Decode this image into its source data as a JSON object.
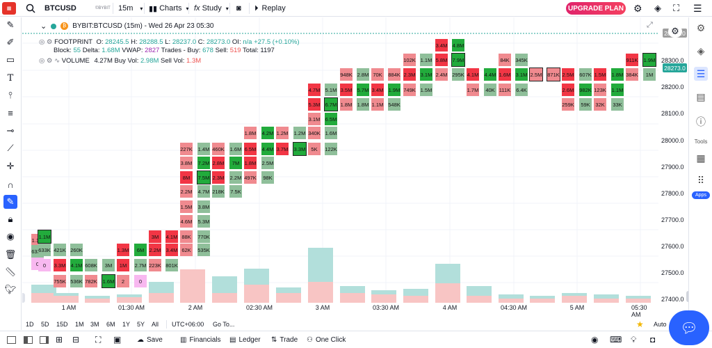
{
  "topbar": {
    "symbol": "BTCUSD",
    "exchange": "©BYBIT",
    "interval": "15m",
    "charts": "Charts",
    "study": "Study",
    "replay": "Replay",
    "upgrade": "UPGRADE PLAN"
  },
  "legend": {
    "title": "BYBIT:BTCUSD (15m) - Wed 26 Apr 23 05:30",
    "fp_name": "FOOTPRINT",
    "o_label": "O:",
    "o": "28245.5",
    "h_label": "H:",
    "h": "28288.5",
    "l_label": "L:",
    "l": "28237.0",
    "c_label": "C:",
    "c": "28273.0",
    "oi_label": "OI:",
    "oi": "n/a",
    "chg": "+27.5",
    "chgp": "(+0.10%)",
    "block_label": "Block:",
    "block": "55",
    "delta_label": "Delta:",
    "delta": "1.68M",
    "vwap_label": "VWAP:",
    "vwap": "2827",
    "trades_label": "Trades - Buy:",
    "buy": "678",
    "sell_label": "Sell:",
    "sell": "519",
    "total_label": "Total:",
    "total": "1197",
    "vol_name": "VOLUME",
    "vol": "4.27M",
    "buyvol_label": "Buy Vol:",
    "buyvol": "2.98M",
    "sellvol_label": "Sell Vol:",
    "sellvol": "1.3M"
  },
  "price_axis": {
    "ticks": [
      "28300.0",
      "28200.0",
      "28100.0",
      "28000.0",
      "27900.0",
      "27800.0",
      "27700.0",
      "27600.0",
      "27500.0",
      "27400.0"
    ],
    "last": "28273.0",
    "top": "28280.0"
  },
  "time_axis": {
    "ticks": [
      "1 AM",
      "01:30 AM",
      "2 AM",
      "02:30 AM",
      "3 AM",
      "03:30 AM",
      "4 AM",
      "04:30 AM",
      "5 AM",
      "05:30 AM"
    ]
  },
  "bottom": {
    "ranges": [
      "1D",
      "5D",
      "15D",
      "1M",
      "3M",
      "6M",
      "1Y",
      "5Y",
      "All"
    ],
    "tz": "UTC+06:00",
    "goto": "Go To...",
    "auto": "Auto",
    "log": "Lo"
  },
  "footer": {
    "save": "Save",
    "financials": "Financials",
    "ledger": "Ledger",
    "trade": "Trade",
    "oneclick": "One Click"
  },
  "side": {
    "tools": "Tools",
    "apps": "Apps"
  },
  "colors": {
    "up": "#26a69a",
    "down": "#ef5350",
    "upcell": "#22ab3c",
    "downcell": "#f23645",
    "accent": "#2962ff"
  },
  "footprint": [
    {
      "x": 45,
      "cells": [
        {
          "y": 336,
          "t": "1.1M",
          "c": "r"
        },
        {
          "y": 352,
          "t": "633K",
          "c": "g"
        },
        {
          "y": 370,
          "t": "0",
          "c": "p"
        }
      ]
    },
    {
      "x": 55,
      "cells": [
        {
          "y": 331,
          "t": "1.1M",
          "c": "G",
          "b": 1
        },
        {
          "y": 350,
          "t": "633K",
          "c": "g"
        },
        {
          "y": 372,
          "t": "0",
          "c": "p"
        }
      ]
    },
    {
      "x": 77,
      "cells": [
        {
          "y": 350,
          "t": "421K",
          "c": "g"
        },
        {
          "y": 372,
          "t": "3.3M",
          "c": "R"
        },
        {
          "y": 395,
          "t": "755K",
          "c": "r"
        }
      ]
    },
    {
      "x": 101,
      "cells": [
        {
          "y": 350,
          "t": "260K",
          "c": "g"
        },
        {
          "y": 372,
          "t": "4.1M",
          "c": "G"
        },
        {
          "y": 395,
          "t": "536K",
          "c": "g"
        }
      ]
    },
    {
      "x": 122,
      "cells": [
        {
          "y": 372,
          "t": "608K",
          "c": "g"
        },
        {
          "y": 395,
          "t": "782K",
          "c": "r"
        }
      ]
    },
    {
      "x": 147,
      "cells": [
        {
          "y": 372,
          "t": "3M",
          "c": "g"
        },
        {
          "y": 395,
          "t": "1.6M",
          "c": "G",
          "b": 1
        }
      ]
    },
    {
      "x": 168,
      "cells": [
        {
          "y": 350,
          "t": "1.3M",
          "c": "R"
        },
        {
          "y": 372,
          "t": "1M",
          "c": "R"
        },
        {
          "y": 395,
          "t": "2",
          "c": "r"
        }
      ]
    },
    {
      "x": 193,
      "cells": [
        {
          "y": 350,
          "t": "6M",
          "c": "G"
        },
        {
          "y": 372,
          "t": "2.7M",
          "c": "g"
        },
        {
          "y": 395,
          "t": "0",
          "c": "p"
        }
      ]
    },
    {
      "x": 214,
      "cells": [
        {
          "y": 331,
          "t": "3M",
          "c": "R"
        },
        {
          "y": 350,
          "t": "2.2M",
          "c": "R"
        },
        {
          "y": 372,
          "t": "223K",
          "c": "r"
        }
      ]
    },
    {
      "x": 238,
      "cells": [
        {
          "y": 331,
          "t": "4.1M",
          "c": "R"
        },
        {
          "y": 350,
          "t": "3.4M",
          "c": "R"
        },
        {
          "y": 372,
          "t": "801K",
          "c": "g"
        }
      ]
    },
    {
      "x": 259,
      "cells": [
        {
          "y": 205,
          "t": "227K",
          "c": "r"
        },
        {
          "y": 225,
          "t": "3.8M",
          "c": "r"
        },
        {
          "y": 246,
          "t": "8M",
          "c": "R"
        },
        {
          "y": 266,
          "t": "2.2M",
          "c": "r"
        },
        {
          "y": 288,
          "t": "1.5M",
          "c": "r"
        },
        {
          "y": 309,
          "t": "4.6M",
          "c": "r"
        },
        {
          "y": 331,
          "t": "88K",
          "c": "r"
        },
        {
          "y": 350,
          "t": "62K",
          "c": "r"
        }
      ]
    },
    {
      "x": 284,
      "cells": [
        {
          "y": 205,
          "t": "1.4M",
          "c": "g"
        },
        {
          "y": 225,
          "t": "7.2M",
          "c": "G"
        },
        {
          "y": 246,
          "t": "7.5M",
          "c": "G",
          "b": 1
        },
        {
          "y": 266,
          "t": "4.7M",
          "c": "g"
        },
        {
          "y": 288,
          "t": "3.8M",
          "c": "g"
        },
        {
          "y": 309,
          "t": "5.3M",
          "c": "g"
        },
        {
          "y": 331,
          "t": "770K",
          "c": "g"
        },
        {
          "y": 350,
          "t": "535K",
          "c": "g"
        }
      ]
    },
    {
      "x": 305,
      "cells": [
        {
          "y": 205,
          "t": "460K",
          "c": "r"
        },
        {
          "y": 225,
          "t": "2.8M",
          "c": "R"
        },
        {
          "y": 246,
          "t": "2.3M",
          "c": "R"
        },
        {
          "y": 266,
          "t": "218K",
          "c": "g"
        }
      ]
    },
    {
      "x": 330,
      "cells": [
        {
          "y": 205,
          "t": "1.6M",
          "c": "g"
        },
        {
          "y": 225,
          "t": "7M",
          "c": "G"
        },
        {
          "y": 246,
          "t": "2.2M",
          "c": "g"
        },
        {
          "y": 266,
          "t": "7.5K",
          "c": "g"
        }
      ]
    },
    {
      "x": 351,
      "cells": [
        {
          "y": 182,
          "t": "1.8M",
          "c": "r"
        },
        {
          "y": 205,
          "t": "6.5M",
          "c": "R"
        },
        {
          "y": 225,
          "t": "1.8M",
          "c": "R"
        },
        {
          "y": 246,
          "t": "497K",
          "c": "r"
        }
      ]
    },
    {
      "x": 376,
      "cells": [
        {
          "y": 182,
          "t": "4.2M",
          "c": "G"
        },
        {
          "y": 205,
          "t": "4.4M",
          "c": "G"
        },
        {
          "y": 225,
          "t": "2.5M",
          "c": "g"
        },
        {
          "y": 246,
          "t": "98K",
          "c": "g"
        }
      ]
    },
    {
      "x": 397,
      "cells": [
        {
          "y": 182,
          "t": "1.2M",
          "c": "r"
        },
        {
          "y": 205,
          "t": "3.7M",
          "c": "R"
        }
      ]
    },
    {
      "x": 422,
      "cells": [
        {
          "y": 182,
          "t": "1.2M",
          "c": "g"
        },
        {
          "y": 205,
          "t": "3.3M",
          "c": "G",
          "b": 1
        }
      ]
    },
    {
      "x": 443,
      "cells": [
        {
          "y": 120,
          "t": "4.7M",
          "c": "R"
        },
        {
          "y": 141,
          "t": "5.3M",
          "c": "R"
        },
        {
          "y": 162,
          "t": "3.1M",
          "c": "r"
        },
        {
          "y": 182,
          "t": "340K",
          "c": "r"
        },
        {
          "y": 205,
          "t": "5K",
          "c": "r"
        }
      ]
    },
    {
      "x": 467,
      "cells": [
        {
          "y": 120,
          "t": "5.1M",
          "c": "g"
        },
        {
          "y": 141,
          "t": "6.7M",
          "c": "G",
          "b": 1
        },
        {
          "y": 162,
          "t": "6.5M",
          "c": "G"
        },
        {
          "y": 182,
          "t": "1.6M",
          "c": "g"
        },
        {
          "y": 205,
          "t": "122K",
          "c": "g"
        }
      ]
    },
    {
      "x": 489,
      "cells": [
        {
          "y": 98,
          "t": "948K",
          "c": "r"
        },
        {
          "y": 120,
          "t": "3.5M",
          "c": "R"
        },
        {
          "y": 141,
          "t": "1.8M",
          "c": "r"
        }
      ]
    },
    {
      "x": 513,
      "cells": [
        {
          "y": 98,
          "t": "2.8M",
          "c": "g"
        },
        {
          "y": 120,
          "t": "5.7M",
          "c": "G"
        },
        {
          "y": 141,
          "t": "1.8M",
          "c": "g"
        }
      ]
    },
    {
      "x": 534,
      "cells": [
        {
          "y": 98,
          "t": "70K",
          "c": "r"
        },
        {
          "y": 120,
          "t": "3.4M",
          "c": "R"
        },
        {
          "y": 141,
          "t": "1.1M",
          "c": "r"
        }
      ]
    },
    {
      "x": 558,
      "cells": [
        {
          "y": 98,
          "t": "884K",
          "c": "r"
        },
        {
          "y": 120,
          "t": "1.9M",
          "c": "G"
        },
        {
          "y": 141,
          "t": "548K",
          "c": "g"
        }
      ]
    },
    {
      "x": 580,
      "cells": [
        {
          "y": 77,
          "t": "102K",
          "c": "r"
        },
        {
          "y": 98,
          "t": "2.3M",
          "c": "R"
        },
        {
          "y": 120,
          "t": "749K",
          "c": "r"
        }
      ]
    },
    {
      "x": 604,
      "cells": [
        {
          "y": 77,
          "t": "1.1M",
          "c": "g"
        },
        {
          "y": 98,
          "t": "3.1M",
          "c": "G"
        },
        {
          "y": 120,
          "t": "1.5M",
          "c": "g"
        }
      ]
    },
    {
      "x": 626,
      "cells": [
        {
          "y": 56,
          "t": "3.4M",
          "c": "R"
        },
        {
          "y": 77,
          "t": "5.8M",
          "c": "R"
        },
        {
          "y": 98,
          "t": "2.4M",
          "c": "r"
        }
      ]
    },
    {
      "x": 650,
      "cells": [
        {
          "y": 56,
          "t": "4.8M",
          "c": "G"
        },
        {
          "y": 77,
          "t": "7.9M",
          "c": "G",
          "b": 1
        },
        {
          "y": 98,
          "t": "295K",
          "c": "g"
        }
      ]
    },
    {
      "x": 671,
      "cells": [
        {
          "y": 98,
          "t": "4.1M",
          "c": "R"
        },
        {
          "y": 120,
          "t": "1.7M",
          "c": "r"
        }
      ]
    },
    {
      "x": 696,
      "cells": [
        {
          "y": 98,
          "t": "4.4M",
          "c": "G"
        },
        {
          "y": 120,
          "t": "40K",
          "c": "g"
        }
      ]
    },
    {
      "x": 717,
      "cells": [
        {
          "y": 77,
          "t": "84K",
          "c": "r"
        },
        {
          "y": 98,
          "t": "1.6M",
          "c": "R"
        },
        {
          "y": 120,
          "t": "111K",
          "c": "r"
        }
      ]
    },
    {
      "x": 741,
      "cells": [
        {
          "y": 77,
          "t": "345K",
          "c": "g"
        },
        {
          "y": 98,
          "t": "3.1M",
          "c": "G"
        },
        {
          "y": 120,
          "t": "6.4K",
          "c": "g"
        }
      ]
    },
    {
      "x": 762,
      "cells": [
        {
          "y": 98,
          "t": "2.5M",
          "c": "r",
          "b": 1
        }
      ]
    },
    {
      "x": 787,
      "cells": [
        {
          "y": 98,
          "t": "871K",
          "c": "r",
          "b": 1
        }
      ]
    },
    {
      "x": 808,
      "cells": [
        {
          "y": 98,
          "t": "2.5M",
          "c": "R"
        },
        {
          "y": 120,
          "t": "2.6M",
          "c": "R"
        },
        {
          "y": 141,
          "t": "259K",
          "c": "r"
        }
      ]
    },
    {
      "x": 833,
      "cells": [
        {
          "y": 98,
          "t": "607K",
          "c": "g"
        },
        {
          "y": 120,
          "t": "982K",
          "c": "G"
        },
        {
          "y": 141,
          "t": "59K",
          "c": "g"
        }
      ]
    },
    {
      "x": 854,
      "cells": [
        {
          "y": 98,
          "t": "1.5M",
          "c": "R"
        },
        {
          "y": 120,
          "t": "123K",
          "c": "r"
        },
        {
          "y": 141,
          "t": "32K",
          "c": "r"
        }
      ]
    },
    {
      "x": 879,
      "cells": [
        {
          "y": 98,
          "t": "1.8M",
          "c": "G"
        },
        {
          "y": 120,
          "t": "1.1M",
          "c": "G"
        },
        {
          "y": 141,
          "t": "33K",
          "c": "g"
        }
      ]
    },
    {
      "x": 900,
      "cells": [
        {
          "y": 77,
          "t": "911K",
          "c": "R"
        },
        {
          "y": 98,
          "t": "384K",
          "c": "r"
        }
      ]
    },
    {
      "x": 925,
      "cells": [
        {
          "y": 77,
          "t": "1.9M",
          "c": "G",
          "b": 1
        },
        {
          "y": 98,
          "t": "1M",
          "c": "g"
        }
      ]
    }
  ],
  "volume": [
    {
      "x": 45,
      "up": 26,
      "dn": 14
    },
    {
      "x": 77,
      "up": 14,
      "dn": 10
    },
    {
      "x": 122,
      "up": 10,
      "dn": 6
    },
    {
      "x": 168,
      "up": 12,
      "dn": 8
    },
    {
      "x": 214,
      "up": 30,
      "dn": 14
    },
    {
      "x": 259,
      "up": 40,
      "dn": 48
    },
    {
      "x": 305,
      "up": 38,
      "dn": 14
    },
    {
      "x": 351,
      "up": 49,
      "dn": 26
    },
    {
      "x": 397,
      "up": 22,
      "dn": 14
    },
    {
      "x": 443,
      "up": 79,
      "dn": 30
    },
    {
      "x": 489,
      "up": 24,
      "dn": 14
    },
    {
      "x": 534,
      "up": 18,
      "dn": 12
    },
    {
      "x": 580,
      "up": 20,
      "dn": 10
    },
    {
      "x": 626,
      "up": 56,
      "dn": 28
    },
    {
      "x": 671,
      "up": 24,
      "dn": 10
    },
    {
      "x": 717,
      "up": 12,
      "dn": 6
    },
    {
      "x": 762,
      "up": 10,
      "dn": 6
    },
    {
      "x": 808,
      "up": 14,
      "dn": 10
    },
    {
      "x": 854,
      "up": 12,
      "dn": 6
    },
    {
      "x": 900,
      "up": 10,
      "dn": 6
    }
  ]
}
